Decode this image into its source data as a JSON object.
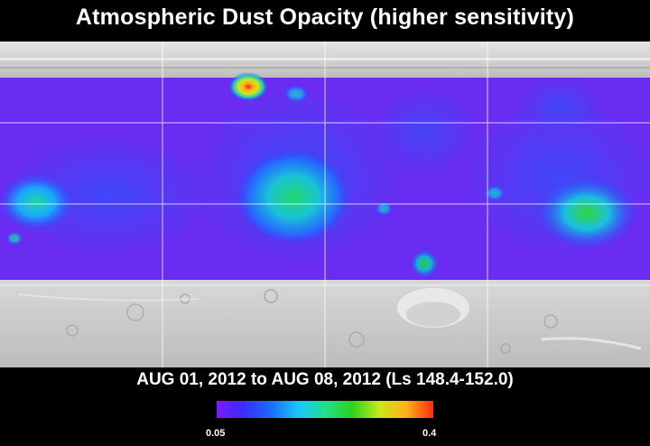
{
  "title": "Atmospheric Dust Opacity (higher sensitivity)",
  "date_range": "AUG 01, 2012 to AUG 08, 2012 (Ls 148.4-152.0)",
  "colorbar": {
    "min_label": "0.05",
    "max_label": "0.4",
    "colors": [
      "#7a1aff",
      "#3a2cff",
      "#1a6cff",
      "#19c7ff",
      "#1fe08a",
      "#2ad21e",
      "#c8e81a",
      "#ffb21a",
      "#ff2a14"
    ]
  },
  "colors": {
    "background": "#000000",
    "terrain": "#cfcfcf",
    "opacity_base": "#6a2cf0"
  },
  "dust_hotspots": [
    {
      "region": "north-high-latitude",
      "level": "0.4"
    },
    {
      "region": "equatorial-center",
      "level": "0.2"
    },
    {
      "region": "west-equatorial",
      "level": "0.17"
    },
    {
      "region": "east-equatorial",
      "level": "0.2"
    },
    {
      "region": "south-mid-latitude",
      "level": "0.2"
    }
  ]
}
